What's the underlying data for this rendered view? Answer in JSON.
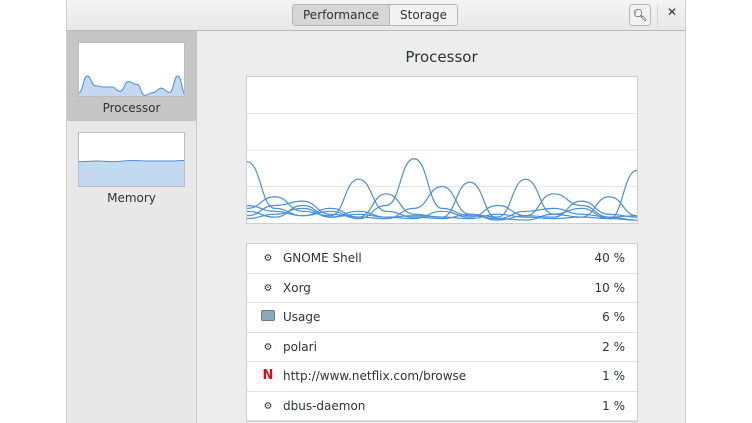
{
  "header": {
    "tabs": [
      {
        "label": "Performance",
        "active": true
      },
      {
        "label": "Storage",
        "active": false
      }
    ],
    "search_icon": "search-icon",
    "close_icon": "close-icon"
  },
  "sidebar": {
    "items": [
      {
        "label": "Processor",
        "selected": true
      },
      {
        "label": "Memory",
        "selected": false
      }
    ]
  },
  "main": {
    "title": "Processor",
    "processes": [
      {
        "name": "GNOME Shell",
        "percent": "40 %",
        "icon": "gear-icon"
      },
      {
        "name": "Xorg",
        "percent": "10 %",
        "icon": "gear-icon"
      },
      {
        "name": "Usage",
        "percent": "6 %",
        "icon": "usage-app-icon"
      },
      {
        "name": "polari",
        "percent": "2 %",
        "icon": "gear-icon"
      },
      {
        "name": "http://www.netflix.com/browse",
        "percent": "1 %",
        "icon": "netflix-icon"
      },
      {
        "name": "dbus-daemon",
        "percent": "1 %",
        "icon": "gear-icon"
      }
    ]
  },
  "chart_data": {
    "type": "line",
    "ylim": [
      0,
      100
    ],
    "grid": true,
    "color": "#4a90d9",
    "series": [
      {
        "values": [
          42,
          10,
          5,
          8,
          3,
          12,
          44,
          10,
          5,
          3,
          2,
          6,
          4,
          3,
          2
        ]
      },
      {
        "values": [
          10,
          18,
          8,
          5,
          30,
          8,
          4,
          3,
          6,
          2,
          5,
          20,
          12,
          4,
          2
        ]
      },
      {
        "values": [
          5,
          12,
          15,
          6,
          4,
          3,
          10,
          25,
          6,
          4,
          30,
          6,
          10,
          3,
          36
        ]
      },
      {
        "values": [
          8,
          4,
          12,
          4,
          8,
          4,
          5,
          4,
          3,
          6,
          4,
          3,
          4,
          18,
          5
        ]
      },
      {
        "values": [
          12,
          8,
          5,
          10,
          4,
          20,
          6,
          4,
          28,
          3,
          8,
          10,
          6,
          4,
          5
        ]
      },
      {
        "values": [
          3,
          6,
          10,
          4,
          6,
          4,
          3,
          8,
          4,
          12,
          5,
          4,
          15,
          6,
          4
        ]
      }
    ]
  },
  "thumbs": {
    "processor": [
      10,
      40,
      22,
      20,
      20,
      12,
      30,
      25,
      5,
      10,
      18,
      10,
      40,
      5
    ],
    "memory": [
      48,
      49,
      48,
      50,
      49,
      49,
      50
    ]
  }
}
